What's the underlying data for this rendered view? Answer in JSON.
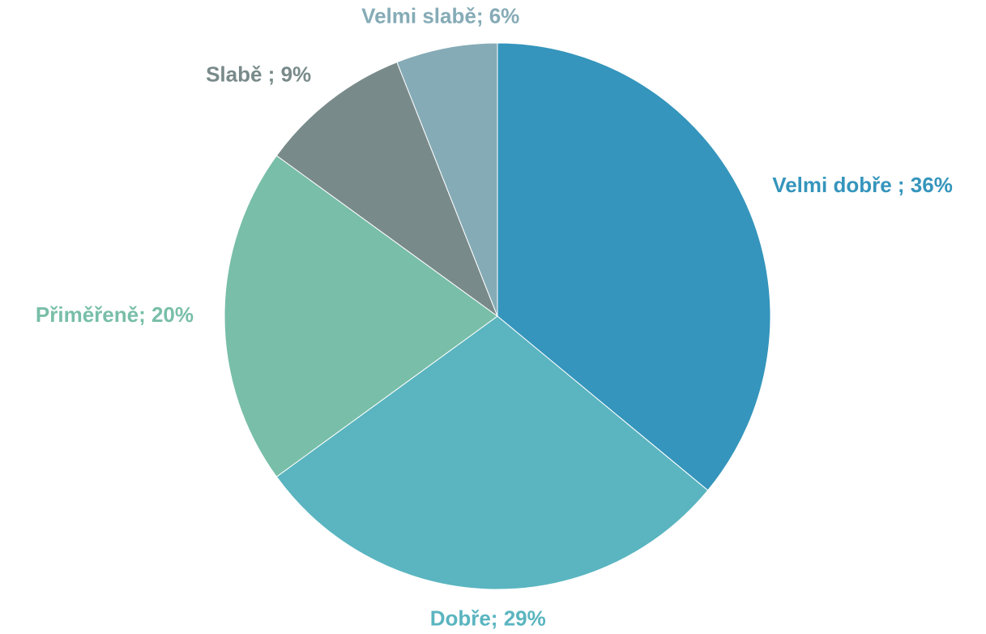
{
  "chart_data": {
    "type": "pie",
    "categories": [
      "Velmi dobře",
      "Dobře",
      "Přiměřeně",
      "Slabě",
      "Velmi slabě"
    ],
    "labels": [
      "Velmi dobře ; 36%",
      "Dobře; 29%",
      "Přiměřeně; 20%",
      "Slabě ; 9%",
      "Velmi slabě; 6%"
    ],
    "values": [
      36,
      29,
      20,
      9,
      6
    ],
    "colors": [
      "#3595bc",
      "#5ab5c0",
      "#78bea8",
      "#798a8a",
      "#85abb6"
    ]
  }
}
